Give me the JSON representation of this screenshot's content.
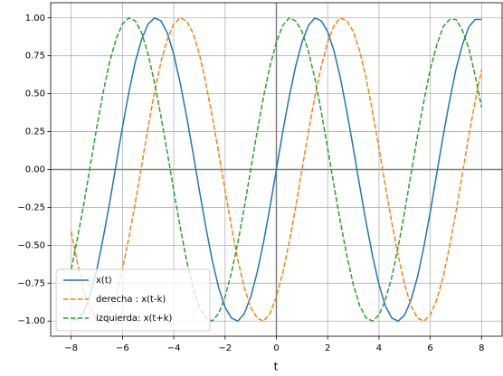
{
  "chart_data": {
    "type": "line",
    "xlabel": "t",
    "x": [
      -8,
      -7.75,
      -7.5,
      -7.25,
      -7,
      -6.75,
      -6.5,
      -6.25,
      -6,
      -5.75,
      -5.5,
      -5.25,
      -5,
      -4.75,
      -4.5,
      -4.25,
      -4,
      -3.75,
      -3.5,
      -3.25,
      -3,
      -2.75,
      -2.5,
      -2.25,
      -2,
      -1.75,
      -1.5,
      -1.25,
      -1,
      -0.75,
      -0.5,
      -0.25,
      0,
      0.25,
      0.5,
      0.75,
      1,
      1.25,
      1.5,
      1.75,
      2,
      2.25,
      2.5,
      2.75,
      3,
      3.25,
      3.5,
      3.75,
      4,
      4.25,
      4.5,
      4.75,
      5,
      5.25,
      5.5,
      5.75,
      6,
      6.25,
      6.5,
      6.75,
      7,
      7.25,
      7.5,
      7.75,
      8
    ],
    "series": [
      {
        "name": "x(t)",
        "color": "#1f77b4",
        "dashed": false,
        "values": [
          -0.99,
          -0.99,
          -0.94,
          -0.82,
          -0.66,
          -0.45,
          -0.22,
          0.03,
          0.28,
          0.51,
          0.71,
          0.86,
          0.96,
          1.0,
          0.98,
          0.9,
          0.76,
          0.57,
          0.35,
          0.11,
          -0.14,
          -0.38,
          -0.6,
          -0.78,
          -0.91,
          -0.98,
          -1.0,
          -0.95,
          -0.84,
          -0.68,
          -0.48,
          -0.25,
          0,
          0.25,
          0.48,
          0.68,
          0.84,
          0.95,
          1.0,
          0.98,
          0.91,
          0.78,
          0.6,
          0.38,
          0.14,
          -0.11,
          -0.35,
          -0.57,
          -0.76,
          -0.9,
          -0.98,
          -1.0,
          -0.96,
          -0.86,
          -0.71,
          -0.51,
          -0.28,
          -0.03,
          0.22,
          0.45,
          0.66,
          0.82,
          0.94,
          0.99,
          0.99
        ]
      },
      {
        "name": "derecha : x(t-k)",
        "color": "#ff7f0e",
        "dashed": true,
        "values": [
          -0.41,
          -0.62,
          -0.8,
          -0.92,
          -0.99,
          -0.99,
          -0.94,
          -0.82,
          -0.66,
          -0.45,
          -0.22,
          0.03,
          0.28,
          0.51,
          0.71,
          0.86,
          0.96,
          1.0,
          0.98,
          0.9,
          0.76,
          0.57,
          0.35,
          0.11,
          -0.14,
          -0.38,
          -0.6,
          -0.78,
          -0.91,
          -0.98,
          -1.0,
          -0.95,
          -0.84,
          -0.68,
          -0.48,
          -0.25,
          0,
          0.25,
          0.48,
          0.68,
          0.84,
          0.95,
          1.0,
          0.98,
          0.91,
          0.78,
          0.6,
          0.38,
          0.14,
          -0.11,
          -0.35,
          -0.57,
          -0.76,
          -0.9,
          -0.98,
          -1.0,
          -0.96,
          -0.86,
          -0.71,
          -0.51,
          -0.28,
          -0.03,
          0.22,
          0.45,
          0.66
        ]
      },
      {
        "name": "izquierda: x(t+k)",
        "color": "#2ca02c",
        "dashed": true,
        "values": [
          -0.66,
          -0.45,
          -0.22,
          0.03,
          0.28,
          0.51,
          0.71,
          0.86,
          0.96,
          1.0,
          0.98,
          0.9,
          0.76,
          0.57,
          0.35,
          0.11,
          -0.14,
          -0.38,
          -0.6,
          -0.78,
          -0.91,
          -0.98,
          -1.0,
          -0.95,
          -0.84,
          -0.68,
          -0.48,
          -0.25,
          0,
          0.25,
          0.48,
          0.68,
          0.84,
          0.95,
          1.0,
          0.98,
          0.91,
          0.78,
          0.6,
          0.38,
          0.14,
          -0.11,
          -0.35,
          -0.57,
          -0.76,
          -0.9,
          -0.98,
          -1.0,
          -0.96,
          -0.86,
          -0.71,
          -0.51,
          -0.28,
          -0.03,
          0.22,
          0.45,
          0.66,
          0.82,
          0.94,
          0.99,
          0.99,
          0.92,
          0.8,
          0.62,
          0.41
        ]
      }
    ],
    "xlim": [
      -8.8,
      8.8
    ],
    "xticks": [
      {
        "value": -8,
        "label": "−8"
      },
      {
        "value": -6,
        "label": "−6"
      },
      {
        "value": -4,
        "label": "−4"
      },
      {
        "value": -2,
        "label": "−2"
      },
      0,
      2,
      4,
      6,
      8
    ],
    "ylim": [
      -1.1,
      1.1
    ],
    "yticks": [
      {
        "value": -1,
        "label": "−1.00"
      },
      {
        "value": -0.75,
        "label": "−0.75"
      },
      {
        "value": -0.5,
        "label": "−0.50"
      },
      {
        "value": -0.25,
        "label": "−0.25"
      },
      {
        "value": 0,
        "label": "0.00"
      },
      {
        "value": 0.25,
        "label": "0.25"
      },
      {
        "value": 0.5,
        "label": "0.50"
      },
      {
        "value": 0.75,
        "label": "0.75"
      },
      {
        "value": 1,
        "label": "1.00"
      }
    ],
    "grid": true,
    "zero_lines": true,
    "legend": "lower left"
  }
}
